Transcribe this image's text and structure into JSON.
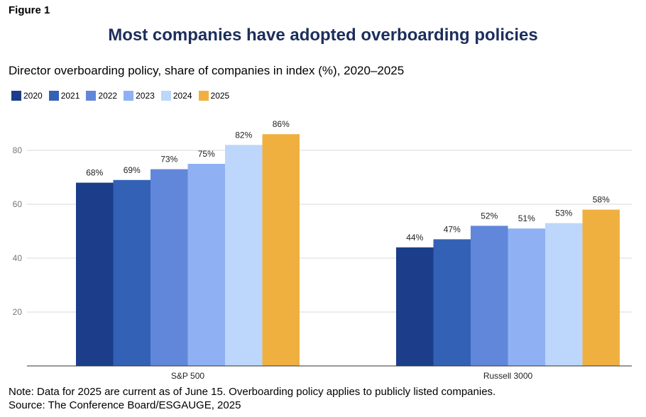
{
  "figure_label": "Figure 1",
  "title": "Most companies have adopted overboarding policies",
  "subtitle": "Director overboarding policy, share of companies in index (%), 2020–2025",
  "note": "Note: Data for 2025 are current as of June 15. Overboarding policy applies to publicly listed companies.",
  "source": "Source: The Conference Board/ESGAUGE, 2025",
  "chart_data": {
    "type": "bar",
    "categories": [
      "S&P 500",
      "Russell 3000"
    ],
    "series": [
      {
        "name": "2020",
        "color": "#1b3d8a",
        "values": [
          68,
          44
        ],
        "labels": [
          "68%",
          "44%"
        ]
      },
      {
        "name": "2021",
        "color": "#3361b5",
        "values": [
          69,
          47
        ],
        "labels": [
          "69%",
          "47%"
        ]
      },
      {
        "name": "2022",
        "color": "#6187da",
        "values": [
          73,
          52
        ],
        "labels": [
          "73%",
          "52%"
        ]
      },
      {
        "name": "2023",
        "color": "#8fb0f3",
        "values": [
          75,
          51
        ],
        "labels": [
          "75%",
          "51%"
        ]
      },
      {
        "name": "2024",
        "color": "#bcd7fb",
        "values": [
          82,
          53
        ],
        "labels": [
          "82%",
          "53%"
        ]
      },
      {
        "name": "2025",
        "color": "#f0b040",
        "values": [
          86,
          58
        ],
        "labels": [
          "86%",
          "58%"
        ]
      }
    ],
    "yticks": [
      20,
      40,
      60,
      80
    ],
    "ylim": [
      0,
      90
    ],
    "grid": true,
    "legend_position": "top-left"
  }
}
